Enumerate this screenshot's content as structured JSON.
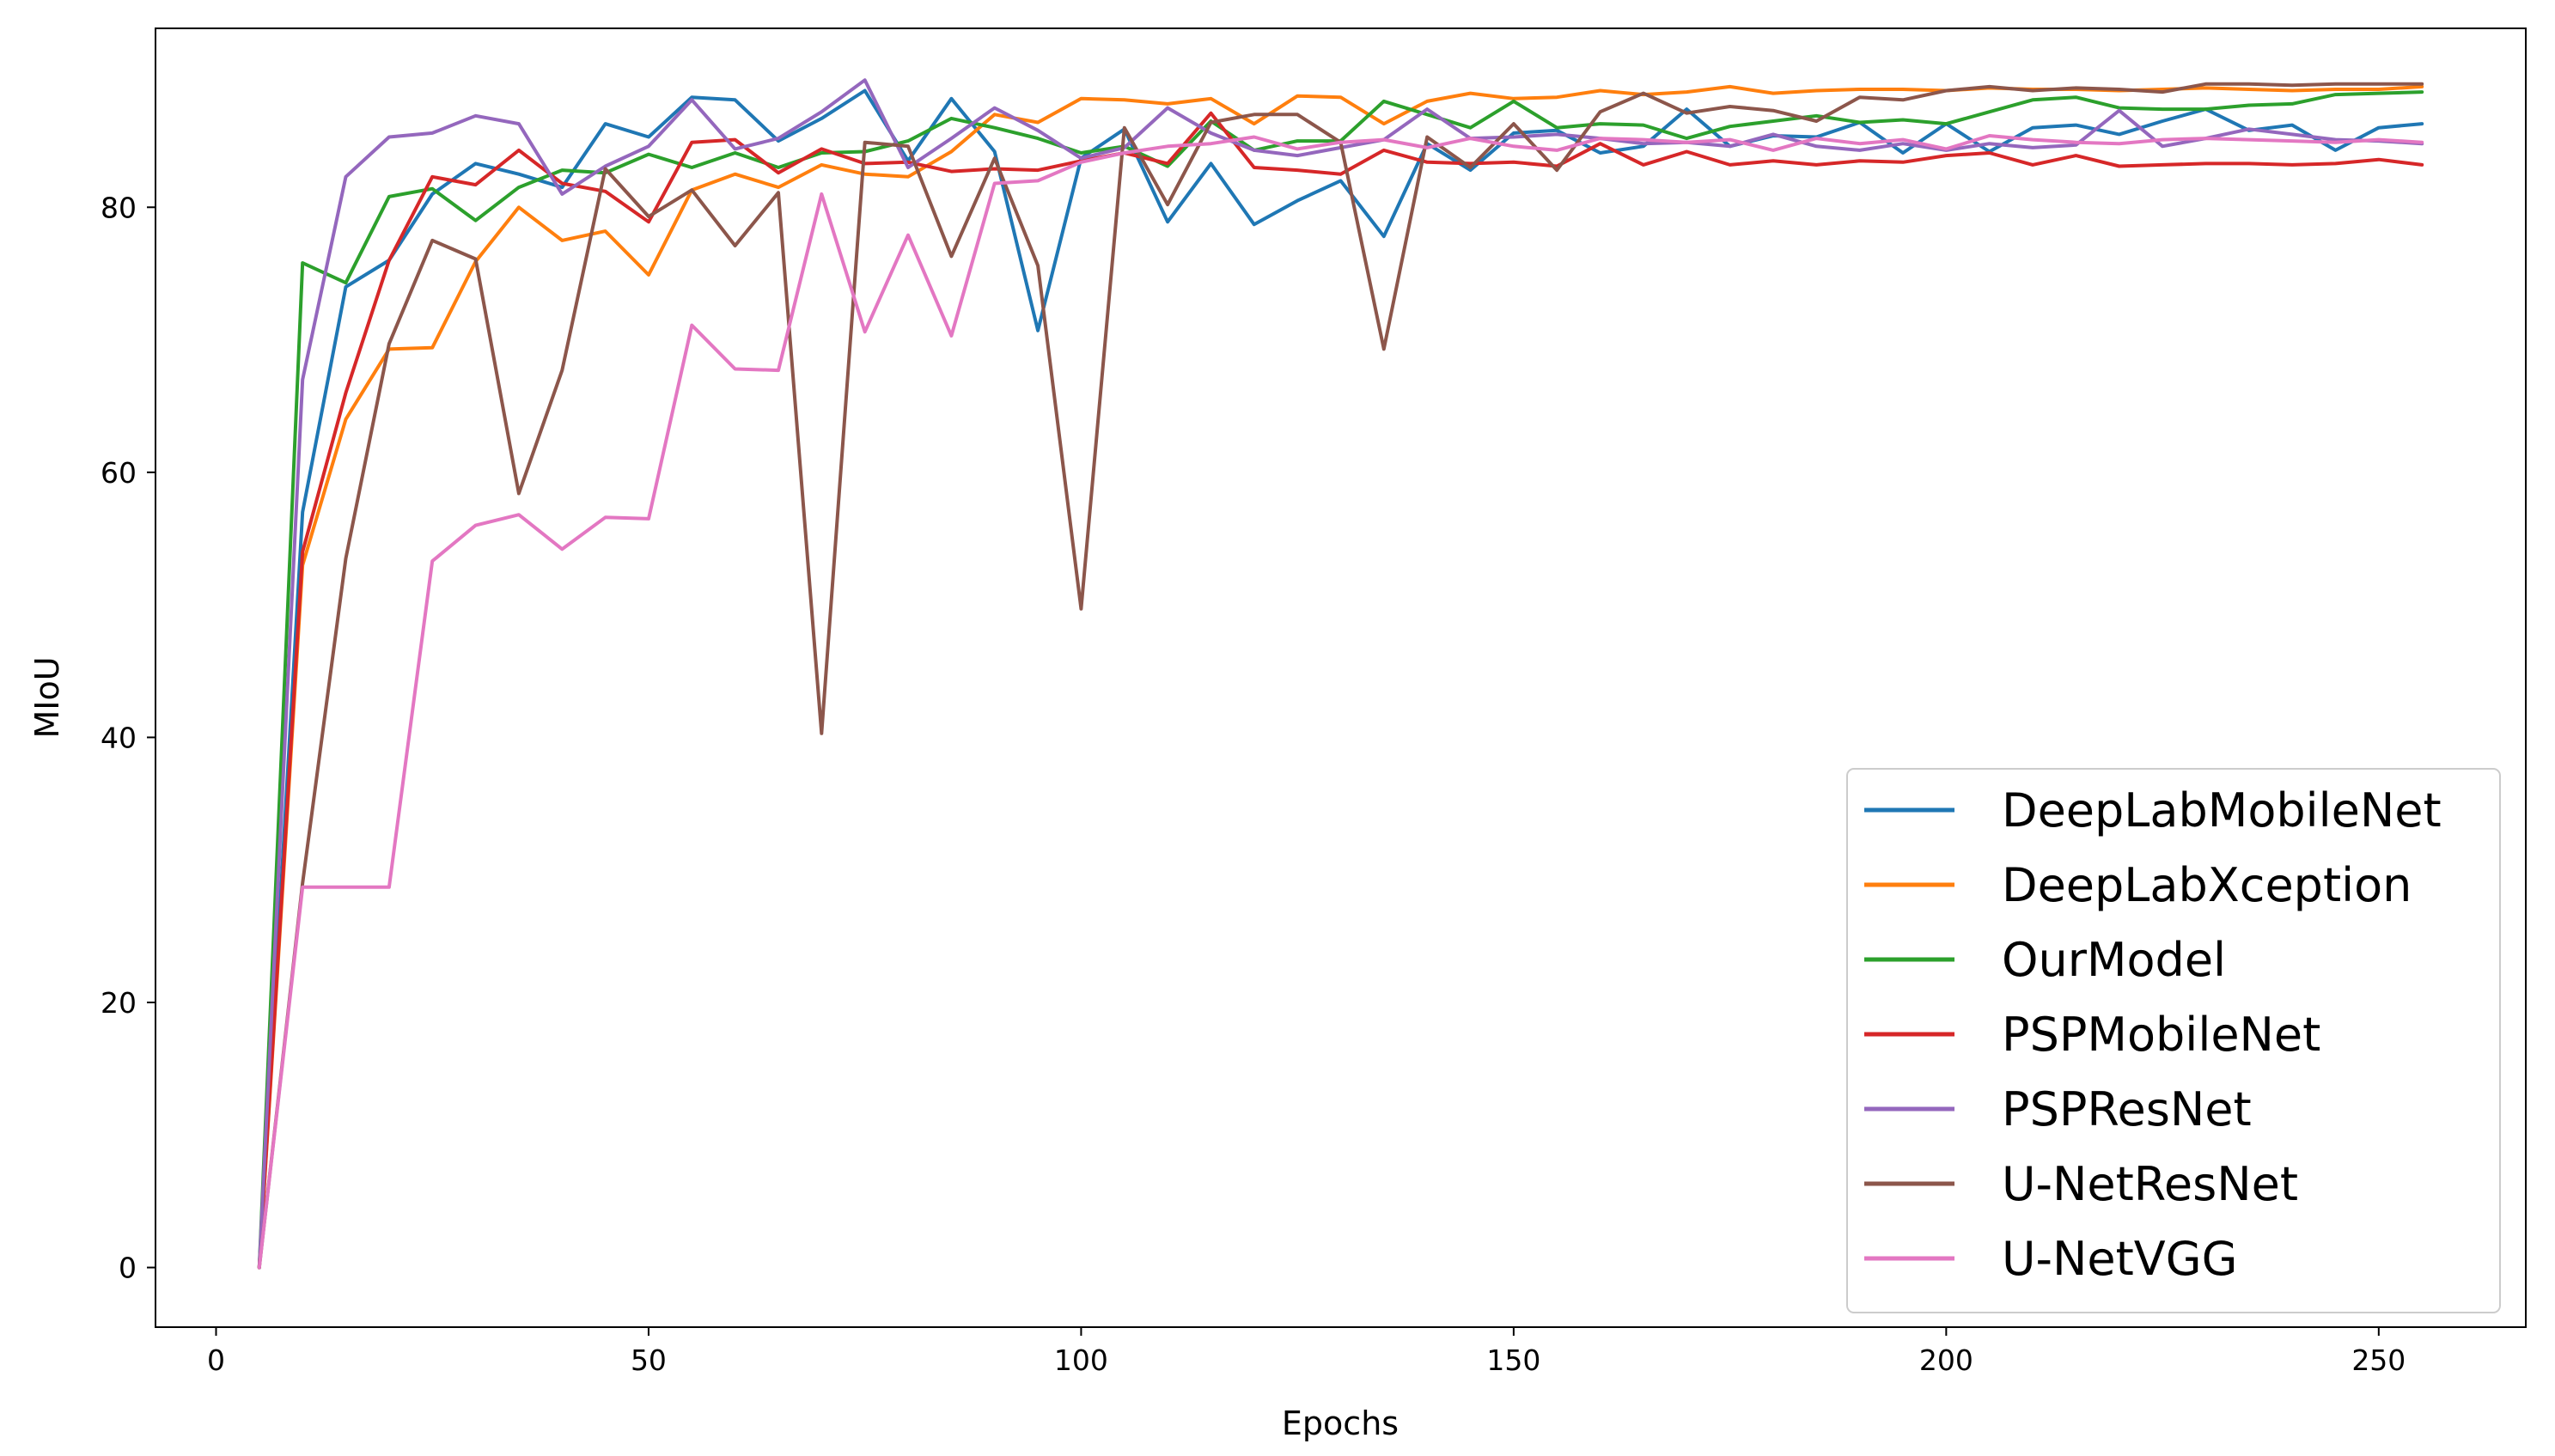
{
  "chart_data": {
    "type": "line",
    "xlabel": "Epochs",
    "ylabel": "MIoU",
    "xlim": [
      -7,
      267
    ],
    "ylim": [
      -4.5,
      93.5
    ],
    "xticks": [
      0,
      50,
      100,
      150,
      200,
      250
    ],
    "yticks": [
      0,
      20,
      40,
      60,
      80
    ],
    "grid": false,
    "legend_position": "lower-right",
    "x": [
      5,
      10,
      15,
      20,
      25,
      30,
      35,
      40,
      45,
      50,
      55,
      60,
      65,
      70,
      75,
      80,
      85,
      90,
      95,
      100,
      105,
      110,
      115,
      120,
      125,
      130,
      135,
      140,
      145,
      150,
      155,
      160,
      165,
      170,
      175,
      180,
      185,
      190,
      195,
      200,
      205,
      210,
      215,
      220,
      225,
      230,
      235,
      240,
      245,
      250,
      255
    ],
    "series": [
      {
        "name": "DeepLabMobileNet",
        "color": "#1f77b4",
        "values": [
          0,
          57,
          74,
          76,
          81,
          83.3,
          82.5,
          81.5,
          86.3,
          85.3,
          88.3,
          88.1,
          85,
          86.7,
          88.8,
          83.5,
          88.2,
          84.2,
          70.7,
          83.7,
          85.9,
          78.9,
          83.3,
          78.7,
          80.5,
          82,
          77.8,
          84.8,
          82.8,
          85.6,
          85.8,
          84.1,
          84.6,
          87.4,
          84.6,
          85.4,
          85.3,
          86.4,
          84.1,
          86.3,
          84.2,
          86,
          86.2,
          85.5,
          86.5,
          87.4,
          85.8,
          86.2,
          84.3,
          86,
          86.3
        ]
      },
      {
        "name": "DeepLabXception",
        "color": "#ff7f0e",
        "values": [
          0,
          53,
          64,
          69.3,
          69.4,
          75.9,
          80,
          77.5,
          78.2,
          74.9,
          81.3,
          82.5,
          81.5,
          83.2,
          82.5,
          82.3,
          84.2,
          87,
          86.4,
          88.2,
          88.1,
          87.8,
          88.2,
          86.3,
          88.4,
          88.3,
          86.3,
          88,
          88.6,
          88.2,
          88.3,
          88.8,
          88.5,
          88.7,
          89.1,
          88.6,
          88.8,
          88.9,
          88.9,
          88.8,
          89,
          88.9,
          88.9,
          88.8,
          88.9,
          89,
          88.9,
          88.8,
          88.9,
          88.9,
          89.1
        ]
      },
      {
        "name": "OurModel",
        "color": "#2ca02c",
        "values": [
          0,
          75.8,
          74.3,
          80.8,
          81.4,
          79,
          81.5,
          82.8,
          82.6,
          84,
          83,
          84.1,
          83,
          84.1,
          84.2,
          85,
          86.7,
          86,
          85.2,
          84.1,
          84.6,
          83.1,
          86.5,
          84.3,
          85,
          85,
          88,
          87,
          86,
          88,
          86,
          86.3,
          86.2,
          85.2,
          86.1,
          86.5,
          86.9,
          86.4,
          86.6,
          86.3,
          87.2,
          88.1,
          88.3,
          87.5,
          87.4,
          87.4,
          87.7,
          87.8,
          88.5,
          88.6,
          88.7
        ]
      },
      {
        "name": "PSPMobileNet",
        "color": "#d62728",
        "values": [
          0,
          54,
          66,
          76,
          82.3,
          81.7,
          84.3,
          81.8,
          81.2,
          78.9,
          84.9,
          85.1,
          82.6,
          84.4,
          83.3,
          83.4,
          82.7,
          82.9,
          82.8,
          83.5,
          84.1,
          83.3,
          87.1,
          83,
          82.8,
          82.5,
          84.3,
          83.4,
          83.3,
          83.4,
          83.1,
          84.8,
          83.2,
          84.2,
          83.2,
          83.5,
          83.2,
          83.5,
          83.4,
          83.9,
          84.1,
          83.2,
          83.9,
          83.1,
          83.2,
          83.3,
          83.3,
          83.2,
          83.3,
          83.6,
          83.2
        ]
      },
      {
        "name": "PSPResNet",
        "color": "#9467bd",
        "values": [
          0,
          67,
          82.3,
          85.3,
          85.6,
          86.9,
          86.3,
          81,
          83.1,
          84.6,
          88.1,
          84.4,
          85.2,
          87.2,
          89.6,
          83,
          85.2,
          87.5,
          85.8,
          83.7,
          84.5,
          87.5,
          85.6,
          84.3,
          83.9,
          84.5,
          85.1,
          87.4,
          85.2,
          85.3,
          85.5,
          85.2,
          84.8,
          84.9,
          84.6,
          85.5,
          84.6,
          84.3,
          84.8,
          84.3,
          84.8,
          84.5,
          84.7,
          87.3,
          84.6,
          85.2,
          85.9,
          85.5,
          85.1,
          85,
          84.8
        ]
      },
      {
        "name": "U-NetResNet",
        "color": "#8c564b",
        "values": [
          0,
          29,
          53.5,
          69.7,
          77.5,
          76.1,
          58.4,
          67.7,
          82.9,
          79.3,
          81.3,
          77.1,
          81.1,
          40.3,
          84.9,
          84.6,
          76.3,
          83.7,
          75.6,
          49.7,
          86,
          80.2,
          86.4,
          87,
          87,
          84.9,
          69.3,
          85.3,
          83,
          86.3,
          82.8,
          87.2,
          88.6,
          87.1,
          87.6,
          87.3,
          86.5,
          88.3,
          88.1,
          88.8,
          89.1,
          88.8,
          89,
          88.9,
          88.7,
          89.3,
          89.3,
          89.2,
          89.3,
          89.3,
          89.3
        ]
      },
      {
        "name": "U-NetVGG",
        "color": "#e377c2",
        "values": [
          0,
          28.7,
          28.7,
          28.7,
          53.3,
          56,
          56.8,
          54.2,
          56.6,
          56.5,
          71.1,
          67.8,
          67.7,
          81,
          70.6,
          77.9,
          70.3,
          81.8,
          82,
          83.4,
          84.1,
          84.6,
          84.8,
          85.3,
          84.4,
          84.9,
          85.1,
          84.5,
          85.2,
          84.6,
          84.3,
          85.2,
          85.1,
          84.9,
          85.1,
          84.3,
          85.2,
          84.8,
          85.1,
          84.4,
          85.4,
          85.1,
          84.9,
          84.8,
          85.1,
          85.2,
          85.1,
          85,
          84.9,
          85.1,
          84.9
        ]
      }
    ]
  }
}
